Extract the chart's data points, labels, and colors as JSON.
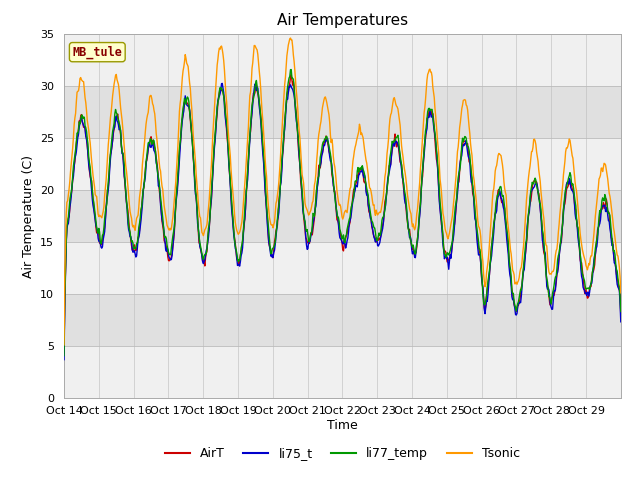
{
  "title": "Air Temperatures",
  "xlabel": "Time",
  "ylabel": "Air Temperature (C)",
  "ylim": [
    0,
    35
  ],
  "yticks": [
    0,
    5,
    10,
    15,
    20,
    25,
    30,
    35
  ],
  "series_colors": {
    "AirT": "#cc0000",
    "li75_t": "#0000cc",
    "li77_temp": "#009900",
    "Tsonic": "#ff9900"
  },
  "annotation_text": "MB_tule",
  "annotation_color": "#880000",
  "annotation_bg": "#ffffcc",
  "annotation_edge": "#999900",
  "fig_bg": "#ffffff",
  "plot_bg_light": "#f0f0f0",
  "plot_bg_dark": "#e0e0e0",
  "grid_color": "#bbbbbb",
  "n_days": 16,
  "x_tick_labels": [
    "Oct 14",
    "Oct 15",
    "Oct 16",
    "Oct 17",
    "Oct 18",
    "Oct 19",
    "Oct 20",
    "Oct 21",
    "Oct 22",
    "Oct 23",
    "Oct 24",
    "Oct 25",
    "Oct 26",
    "Oct 27",
    "Oct 28",
    "Oct 29",
    ""
  ],
  "title_fontsize": 11,
  "axis_fontsize": 9,
  "tick_fontsize": 8
}
